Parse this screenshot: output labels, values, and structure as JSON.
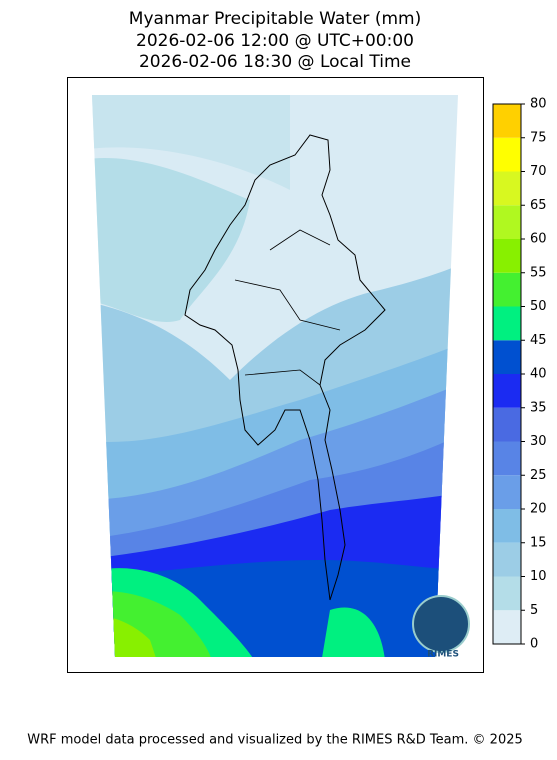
{
  "title": [
    "Myanmar Precipitable Water (mm)",
    "2026-02-06 12:00 @ UTC+00:00",
    "2026-02-06 18:30 @ Local Time"
  ],
  "colorbar": {
    "levels": [
      0,
      5,
      10,
      15,
      20,
      25,
      30,
      35,
      40,
      45,
      50,
      55,
      60,
      65,
      70,
      75,
      80
    ],
    "colors": [
      "#deedf5",
      "#b4dde8",
      "#9ccde6",
      "#7fbde6",
      "#6a9ee8",
      "#5884e6",
      "#4a6ae2",
      "#1b2bf2",
      "#0050d0",
      "#00f080",
      "#44f030",
      "#88f000",
      "#b0f820",
      "#d8f820",
      "#ffff00",
      "#ffd000"
    ]
  },
  "logo": "RIMES",
  "footer": "WRF model data processed and visualized by the RIMES R&D Team. © 2025"
}
